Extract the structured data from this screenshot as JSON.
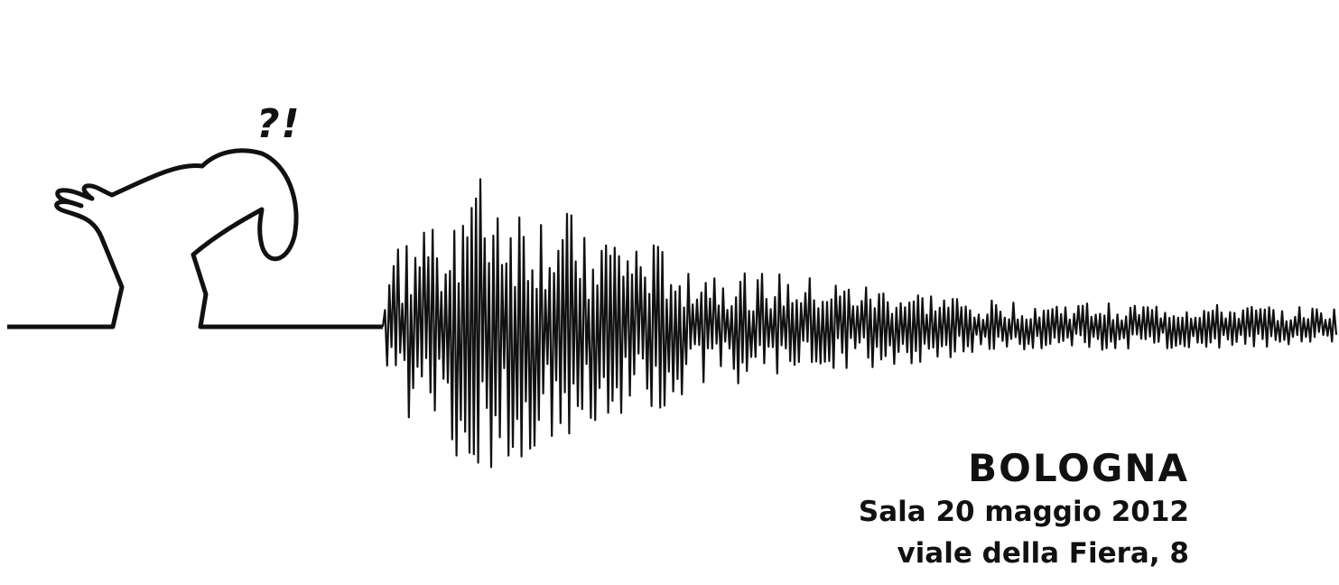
{
  "figure": {
    "exclamation": "?!"
  },
  "info": {
    "city": "BOLOGNA",
    "venue": "Sala 20 maggio 2012",
    "address": "viale della Fiera, 8"
  },
  "colors": {
    "ink": "#111111",
    "background": "#ffffff"
  }
}
